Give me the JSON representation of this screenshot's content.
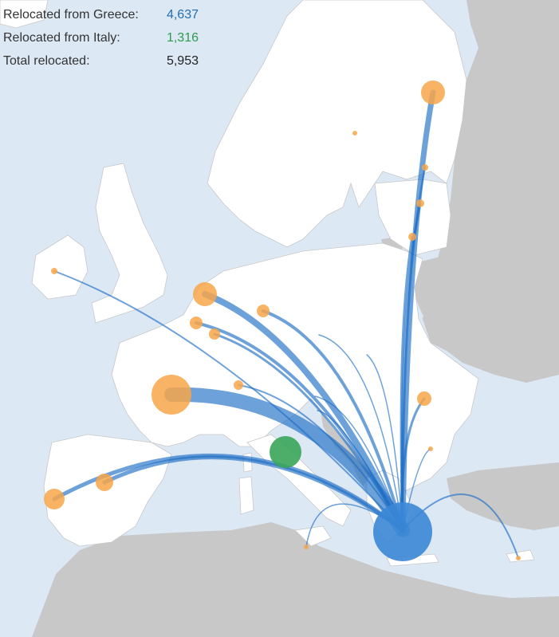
{
  "legend": {
    "greece_label": "Relocated from Greece:",
    "greece_value": "4,637",
    "italy_label": "Relocated from Italy:",
    "italy_value": "1,316",
    "total_label": "Total relocated:",
    "total_value": "5,953"
  },
  "colors": {
    "sea": "#dde8f5",
    "land_europe": "#ffffff",
    "land_other": "#c8c8c8",
    "border": "#c8c8c8",
    "flow_line": "#1f6fc5",
    "greece_hub": "#3b87d6",
    "italy_hub": "#3aa55a",
    "destination": "#f7a64a",
    "greece_text": "#1f6fb0",
    "italy_text": "#2e9a4e",
    "total_text": "#222222"
  },
  "hubs": [
    {
      "name": "Greece",
      "relocated": 4637
    },
    {
      "name": "Italy",
      "relocated": 1316
    }
  ],
  "destinations": [
    {
      "name": "Finland",
      "weight": 0.55
    },
    {
      "name": "Estonia",
      "weight": 0.12
    },
    {
      "name": "Latvia",
      "weight": 0.15
    },
    {
      "name": "Lithuania",
      "weight": 0.17
    },
    {
      "name": "Ireland",
      "weight": 0.1
    },
    {
      "name": "Netherlands",
      "weight": 0.55
    },
    {
      "name": "Germany",
      "weight": 0.26
    },
    {
      "name": "Belgium",
      "weight": 0.24
    },
    {
      "name": "Luxembourg",
      "weight": 0.2
    },
    {
      "name": "France",
      "weight": 1.0
    },
    {
      "name": "Switzerland",
      "weight": 0.18
    },
    {
      "name": "Spain",
      "weight": 0.42
    },
    {
      "name": "Portugal",
      "weight": 0.5
    },
    {
      "name": "Romania",
      "weight": 0.3
    },
    {
      "name": "Bulgaria",
      "weight": 0.08
    },
    {
      "name": "Malta",
      "weight": 0.08
    },
    {
      "name": "Cyprus",
      "weight": 0.08
    },
    {
      "name": "Sweden",
      "weight": 0.07
    },
    {
      "name": "Czech Republic",
      "weight": 0.05
    }
  ]
}
